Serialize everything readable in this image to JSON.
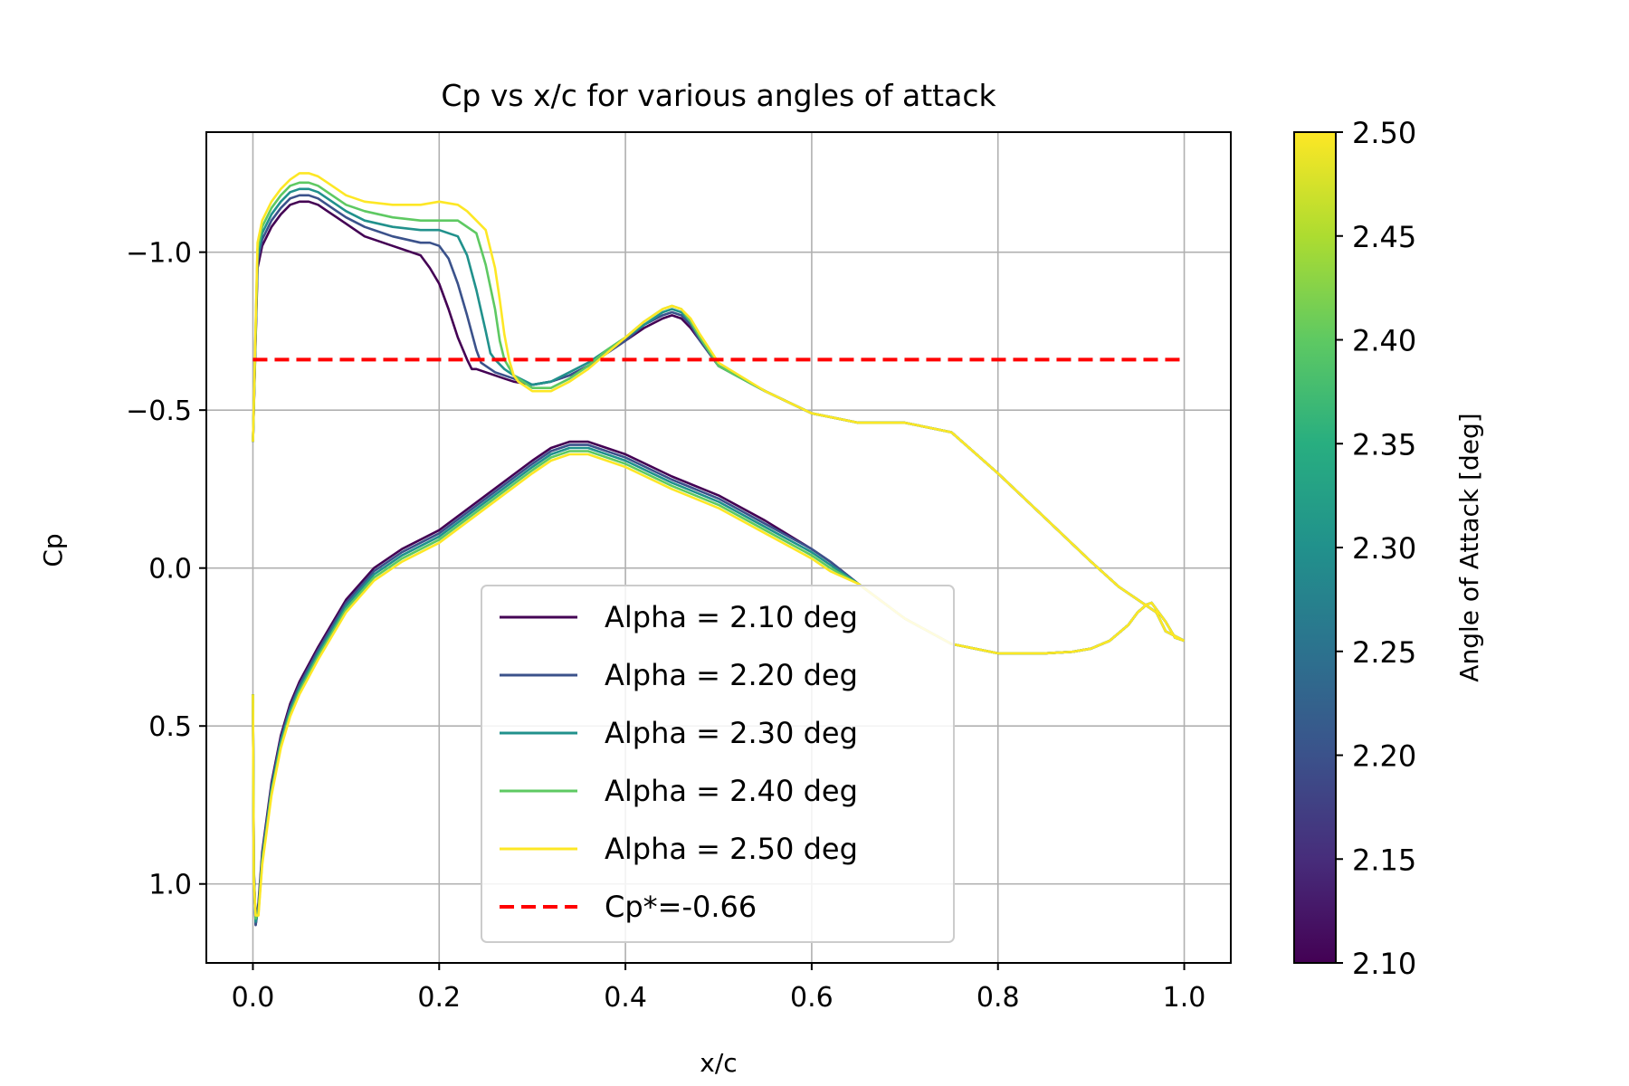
{
  "chart_data": {
    "type": "line",
    "title": "Cp vs x/c for various angles of attack",
    "xlabel": "x/c",
    "ylabel": "Cp",
    "xlim": [
      -0.05,
      1.05
    ],
    "ylim": [
      1.25,
      -1.38
    ],
    "y_inverted": true,
    "grid": true,
    "legend_position": "lower center",
    "xticks": [
      0.0,
      0.2,
      0.4,
      0.6,
      0.8,
      1.0
    ],
    "xtick_labels": [
      "0.0",
      "0.2",
      "0.4",
      "0.6",
      "0.8",
      "1.0"
    ],
    "yticks": [
      -1.0,
      -0.5,
      0.0,
      0.5,
      1.0
    ],
    "ytick_labels": [
      "−1.0",
      "−0.5",
      "0.0",
      "0.5",
      "1.0"
    ],
    "colorbar": {
      "label": "Angle of Attack [deg]",
      "range": [
        2.1,
        2.5
      ],
      "colormap": "viridis",
      "ticks": [
        2.1,
        2.15,
        2.2,
        2.25,
        2.3,
        2.35,
        2.4,
        2.45,
        2.5
      ],
      "tick_labels": [
        "2.10",
        "2.15",
        "2.20",
        "2.25",
        "2.30",
        "2.35",
        "2.40",
        "2.45",
        "2.50"
      ]
    },
    "series": [
      {
        "name": "Alpha = 2.10 deg",
        "color": "#440154",
        "upper_x": [
          0.0,
          0.005,
          0.01,
          0.02,
          0.03,
          0.04,
          0.05,
          0.06,
          0.07,
          0.08,
          0.09,
          0.1,
          0.12,
          0.15,
          0.18,
          0.19,
          0.2,
          0.21,
          0.22,
          0.23,
          0.235,
          0.24,
          0.25,
          0.26,
          0.27,
          0.28,
          0.3,
          0.32,
          0.34,
          0.36,
          0.38,
          0.4,
          0.42,
          0.44,
          0.45,
          0.46,
          0.47,
          0.48,
          0.5,
          0.55,
          0.6,
          0.65,
          0.7,
          0.75,
          0.8,
          0.85,
          0.9,
          0.93,
          0.95,
          0.97,
          0.98,
          1.0
        ],
        "upper_y": [
          -0.4,
          -0.95,
          -1.02,
          -1.08,
          -1.12,
          -1.15,
          -1.16,
          -1.16,
          -1.15,
          -1.13,
          -1.11,
          -1.09,
          -1.05,
          -1.02,
          -0.99,
          -0.95,
          -0.9,
          -0.82,
          -0.73,
          -0.66,
          -0.63,
          -0.63,
          -0.62,
          -0.61,
          -0.6,
          -0.59,
          -0.58,
          -0.59,
          -0.61,
          -0.64,
          -0.68,
          -0.72,
          -0.76,
          -0.79,
          -0.8,
          -0.79,
          -0.76,
          -0.72,
          -0.64,
          -0.56,
          -0.49,
          -0.46,
          -0.46,
          -0.43,
          -0.3,
          -0.16,
          -0.02,
          0.06,
          0.1,
          0.14,
          0.2,
          0.23
        ],
        "lower_x": [
          0.0,
          0.001,
          0.003,
          0.006,
          0.01,
          0.02,
          0.03,
          0.04,
          0.05,
          0.07,
          0.1,
          0.13,
          0.16,
          0.2,
          0.25,
          0.3,
          0.32,
          0.34,
          0.36,
          0.4,
          0.45,
          0.5,
          0.55,
          0.6,
          0.62,
          0.65,
          0.7,
          0.75,
          0.8,
          0.85,
          0.88,
          0.9,
          0.92,
          0.94,
          0.95,
          0.96,
          0.965,
          0.97,
          0.98,
          0.99,
          1.0
        ],
        "lower_y": [
          0.4,
          0.95,
          1.13,
          1.06,
          0.9,
          0.68,
          0.53,
          0.43,
          0.36,
          0.25,
          0.1,
          0.0,
          -0.06,
          -0.12,
          -0.23,
          -0.34,
          -0.38,
          -0.4,
          -0.4,
          -0.36,
          -0.29,
          -0.23,
          -0.15,
          -0.06,
          -0.02,
          0.05,
          0.16,
          0.24,
          0.27,
          0.27,
          0.265,
          0.255,
          0.23,
          0.18,
          0.14,
          0.115,
          0.11,
          0.13,
          0.17,
          0.22,
          0.23
        ]
      },
      {
        "name": "Alpha = 2.20 deg",
        "color": "#3b528b",
        "upper_x": [
          0.0,
          0.005,
          0.01,
          0.02,
          0.03,
          0.04,
          0.05,
          0.06,
          0.07,
          0.08,
          0.09,
          0.1,
          0.12,
          0.15,
          0.18,
          0.19,
          0.2,
          0.21,
          0.22,
          0.23,
          0.24,
          0.245,
          0.25,
          0.26,
          0.27,
          0.28,
          0.3,
          0.32,
          0.34,
          0.36,
          0.38,
          0.4,
          0.42,
          0.44,
          0.45,
          0.46,
          0.47,
          0.48,
          0.5,
          0.55,
          0.6,
          0.65,
          0.7,
          0.75,
          0.8,
          0.85,
          0.9,
          0.93,
          0.95,
          0.97,
          0.98,
          1.0
        ],
        "upper_y": [
          -0.4,
          -0.97,
          -1.04,
          -1.1,
          -1.14,
          -1.17,
          -1.18,
          -1.18,
          -1.17,
          -1.15,
          -1.13,
          -1.11,
          -1.08,
          -1.05,
          -1.03,
          -1.03,
          -1.02,
          -0.98,
          -0.9,
          -0.8,
          -0.69,
          -0.65,
          -0.64,
          -0.62,
          -0.61,
          -0.6,
          -0.58,
          -0.59,
          -0.61,
          -0.64,
          -0.68,
          -0.72,
          -0.77,
          -0.8,
          -0.81,
          -0.8,
          -0.77,
          -0.72,
          -0.64,
          -0.56,
          -0.49,
          -0.46,
          -0.46,
          -0.43,
          -0.3,
          -0.16,
          -0.02,
          0.06,
          0.1,
          0.14,
          0.2,
          0.23
        ],
        "lower_x": [
          0.0,
          0.001,
          0.003,
          0.006,
          0.01,
          0.02,
          0.03,
          0.04,
          0.05,
          0.07,
          0.1,
          0.13,
          0.16,
          0.2,
          0.25,
          0.3,
          0.32,
          0.34,
          0.36,
          0.4,
          0.45,
          0.5,
          0.55,
          0.6,
          0.62,
          0.65,
          0.7,
          0.75,
          0.8,
          0.85,
          0.88,
          0.9,
          0.92,
          0.94,
          0.95,
          0.96,
          0.965,
          0.97,
          0.98,
          0.99,
          1.0
        ],
        "lower_y": [
          0.4,
          0.96,
          1.13,
          1.07,
          0.91,
          0.69,
          0.54,
          0.44,
          0.37,
          0.26,
          0.11,
          0.01,
          -0.05,
          -0.11,
          -0.22,
          -0.33,
          -0.37,
          -0.39,
          -0.39,
          -0.35,
          -0.28,
          -0.22,
          -0.14,
          -0.06,
          -0.02,
          0.05,
          0.16,
          0.24,
          0.27,
          0.27,
          0.265,
          0.255,
          0.23,
          0.18,
          0.14,
          0.115,
          0.11,
          0.13,
          0.17,
          0.22,
          0.23
        ]
      },
      {
        "name": "Alpha = 2.30 deg",
        "color": "#21918c",
        "upper_x": [
          0.0,
          0.005,
          0.01,
          0.02,
          0.03,
          0.04,
          0.05,
          0.06,
          0.07,
          0.08,
          0.09,
          0.1,
          0.12,
          0.15,
          0.18,
          0.2,
          0.22,
          0.23,
          0.24,
          0.25,
          0.255,
          0.26,
          0.27,
          0.28,
          0.3,
          0.32,
          0.34,
          0.36,
          0.38,
          0.4,
          0.42,
          0.44,
          0.45,
          0.46,
          0.47,
          0.48,
          0.5,
          0.55,
          0.6,
          0.65,
          0.7,
          0.75,
          0.8,
          0.85,
          0.9,
          0.93,
          0.95,
          0.97,
          0.98,
          1.0
        ],
        "upper_y": [
          -0.4,
          -0.99,
          -1.06,
          -1.12,
          -1.16,
          -1.19,
          -1.2,
          -1.2,
          -1.19,
          -1.17,
          -1.15,
          -1.13,
          -1.1,
          -1.08,
          -1.07,
          -1.07,
          -1.05,
          -0.99,
          -0.88,
          -0.75,
          -0.68,
          -0.66,
          -0.63,
          -0.61,
          -0.58,
          -0.59,
          -0.62,
          -0.65,
          -0.69,
          -0.73,
          -0.77,
          -0.81,
          -0.82,
          -0.81,
          -0.78,
          -0.73,
          -0.64,
          -0.56,
          -0.49,
          -0.46,
          -0.46,
          -0.43,
          -0.3,
          -0.16,
          -0.02,
          0.06,
          0.1,
          0.14,
          0.2,
          0.23
        ],
        "lower_x": [
          0.0,
          0.001,
          0.003,
          0.006,
          0.01,
          0.02,
          0.03,
          0.04,
          0.05,
          0.07,
          0.1,
          0.13,
          0.16,
          0.2,
          0.25,
          0.3,
          0.32,
          0.34,
          0.36,
          0.4,
          0.45,
          0.5,
          0.55,
          0.6,
          0.62,
          0.65,
          0.7,
          0.75,
          0.8,
          0.85,
          0.88,
          0.9,
          0.92,
          0.94,
          0.95,
          0.96,
          0.965,
          0.97,
          0.98,
          0.99,
          1.0
        ],
        "lower_y": [
          0.4,
          0.97,
          1.12,
          1.08,
          0.92,
          0.7,
          0.55,
          0.45,
          0.38,
          0.27,
          0.12,
          0.02,
          -0.04,
          -0.1,
          -0.21,
          -0.32,
          -0.36,
          -0.38,
          -0.38,
          -0.34,
          -0.27,
          -0.21,
          -0.13,
          -0.05,
          -0.01,
          0.05,
          0.16,
          0.24,
          0.27,
          0.27,
          0.265,
          0.255,
          0.23,
          0.18,
          0.14,
          0.115,
          0.11,
          0.13,
          0.17,
          0.22,
          0.23
        ]
      },
      {
        "name": "Alpha = 2.40 deg",
        "color": "#5ec962",
        "upper_x": [
          0.0,
          0.005,
          0.01,
          0.02,
          0.03,
          0.04,
          0.05,
          0.06,
          0.07,
          0.08,
          0.09,
          0.1,
          0.12,
          0.15,
          0.18,
          0.2,
          0.22,
          0.24,
          0.25,
          0.26,
          0.265,
          0.27,
          0.28,
          0.3,
          0.32,
          0.34,
          0.36,
          0.38,
          0.4,
          0.42,
          0.44,
          0.45,
          0.46,
          0.47,
          0.48,
          0.5,
          0.55,
          0.6,
          0.65,
          0.7,
          0.75,
          0.8,
          0.85,
          0.9,
          0.93,
          0.95,
          0.97,
          0.98,
          1.0
        ],
        "upper_y": [
          -0.4,
          -1.01,
          -1.08,
          -1.14,
          -1.18,
          -1.21,
          -1.22,
          -1.22,
          -1.21,
          -1.19,
          -1.17,
          -1.15,
          -1.13,
          -1.11,
          -1.1,
          -1.1,
          -1.1,
          -1.06,
          -0.96,
          -0.82,
          -0.72,
          -0.66,
          -0.61,
          -0.57,
          -0.57,
          -0.6,
          -0.64,
          -0.69,
          -0.73,
          -0.78,
          -0.82,
          -0.83,
          -0.82,
          -0.78,
          -0.73,
          -0.64,
          -0.56,
          -0.49,
          -0.46,
          -0.46,
          -0.43,
          -0.3,
          -0.16,
          -0.02,
          0.06,
          0.1,
          0.14,
          0.2,
          0.23
        ],
        "lower_x": [
          0.0,
          0.001,
          0.003,
          0.006,
          0.01,
          0.02,
          0.03,
          0.04,
          0.05,
          0.07,
          0.1,
          0.13,
          0.16,
          0.2,
          0.25,
          0.3,
          0.32,
          0.34,
          0.36,
          0.4,
          0.45,
          0.5,
          0.55,
          0.6,
          0.62,
          0.65,
          0.7,
          0.75,
          0.8,
          0.85,
          0.88,
          0.9,
          0.92,
          0.94,
          0.95,
          0.96,
          0.965,
          0.97,
          0.98,
          0.99,
          1.0
        ],
        "lower_y": [
          0.4,
          0.98,
          1.11,
          1.09,
          0.93,
          0.71,
          0.56,
          0.46,
          0.39,
          0.28,
          0.13,
          0.03,
          -0.03,
          -0.09,
          -0.2,
          -0.31,
          -0.35,
          -0.37,
          -0.37,
          -0.33,
          -0.26,
          -0.2,
          -0.12,
          -0.04,
          0.0,
          0.05,
          0.16,
          0.24,
          0.27,
          0.27,
          0.265,
          0.255,
          0.23,
          0.18,
          0.14,
          0.115,
          0.11,
          0.13,
          0.17,
          0.22,
          0.23
        ]
      },
      {
        "name": "Alpha = 2.50 deg",
        "color": "#fde725",
        "upper_x": [
          0.0,
          0.005,
          0.01,
          0.02,
          0.03,
          0.04,
          0.05,
          0.06,
          0.07,
          0.08,
          0.09,
          0.1,
          0.12,
          0.15,
          0.18,
          0.2,
          0.22,
          0.23,
          0.24,
          0.25,
          0.26,
          0.265,
          0.27,
          0.275,
          0.28,
          0.285,
          0.29,
          0.3,
          0.32,
          0.34,
          0.36,
          0.38,
          0.4,
          0.42,
          0.44,
          0.45,
          0.46,
          0.47,
          0.48,
          0.5,
          0.55,
          0.6,
          0.65,
          0.7,
          0.75,
          0.8,
          0.85,
          0.9,
          0.93,
          0.95,
          0.97,
          0.98,
          1.0
        ],
        "upper_y": [
          -0.4,
          -1.03,
          -1.1,
          -1.16,
          -1.2,
          -1.23,
          -1.25,
          -1.25,
          -1.24,
          -1.22,
          -1.2,
          -1.18,
          -1.16,
          -1.15,
          -1.15,
          -1.16,
          -1.15,
          -1.13,
          -1.1,
          -1.07,
          -0.95,
          -0.85,
          -0.74,
          -0.66,
          -0.61,
          -0.59,
          -0.58,
          -0.56,
          -0.56,
          -0.59,
          -0.63,
          -0.68,
          -0.73,
          -0.78,
          -0.82,
          -0.83,
          -0.82,
          -0.79,
          -0.74,
          -0.65,
          -0.56,
          -0.49,
          -0.46,
          -0.46,
          -0.43,
          -0.3,
          -0.16,
          -0.02,
          0.06,
          0.1,
          0.14,
          0.2,
          0.23
        ],
        "lower_x": [
          0.0,
          0.001,
          0.003,
          0.006,
          0.01,
          0.02,
          0.03,
          0.04,
          0.05,
          0.07,
          0.1,
          0.13,
          0.16,
          0.2,
          0.25,
          0.3,
          0.32,
          0.34,
          0.36,
          0.4,
          0.45,
          0.5,
          0.55,
          0.6,
          0.62,
          0.65,
          0.7,
          0.75,
          0.8,
          0.85,
          0.88,
          0.9,
          0.92,
          0.94,
          0.95,
          0.96,
          0.965,
          0.97,
          0.98,
          0.99,
          1.0
        ],
        "lower_y": [
          0.4,
          0.99,
          1.1,
          1.1,
          0.94,
          0.72,
          0.57,
          0.47,
          0.4,
          0.29,
          0.14,
          0.04,
          -0.02,
          -0.08,
          -0.19,
          -0.3,
          -0.34,
          -0.36,
          -0.36,
          -0.32,
          -0.25,
          -0.19,
          -0.11,
          -0.03,
          0.01,
          0.05,
          0.16,
          0.24,
          0.27,
          0.27,
          0.265,
          0.255,
          0.23,
          0.18,
          0.14,
          0.115,
          0.11,
          0.13,
          0.17,
          0.22,
          0.23
        ]
      }
    ],
    "reference_line": {
      "name": "Cp*=-0.66",
      "y": -0.66,
      "x": [
        0.0,
        1.0
      ],
      "color": "#ff0000",
      "style": "dashed"
    }
  }
}
